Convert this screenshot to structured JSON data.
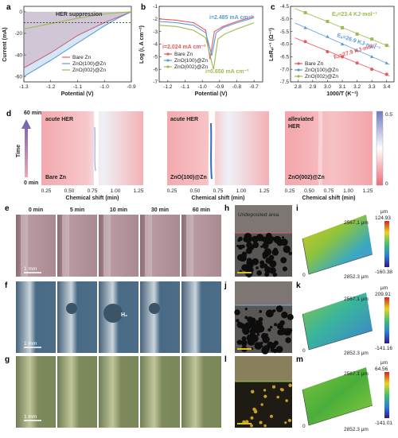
{
  "panels": {
    "a": {
      "letter": "a",
      "annotation": "HER suppression",
      "xlabel": "Potential (V)",
      "ylabel": "Current (mA)",
      "xticks": [
        "-1.3",
        "-1.2",
        "-1.1",
        "-1.0",
        "-0.9"
      ],
      "yticks": [
        "0",
        "-20",
        "-40",
        "-60"
      ],
      "legend": [
        "Bare Zn",
        "ZnO(100)@Zn",
        "ZnO(002)@Zn"
      ]
    },
    "b": {
      "letter": "b",
      "xlabel": "Potential (V)",
      "ylabel": "Log (i, A cm⁻²)",
      "xticks": [
        "-1.2",
        "-1.1",
        "-1.0",
        "-0.9",
        "-0.8",
        "-0.7"
      ],
      "yticks": [
        "-1",
        "-2",
        "-3",
        "-4",
        "-5",
        "-6",
        "-7"
      ],
      "legend": [
        "Bare Zn",
        "ZnO(100)@Zn",
        "ZnO(002)@Zn"
      ],
      "annotations": [
        "i=2.485 mA cm⁻²",
        "i=2.024 mA cm⁻²",
        "i=0.650 mA cm⁻²"
      ]
    },
    "c": {
      "letter": "c",
      "xlabel": "1000/T (K⁻¹)",
      "ylabel": "LnRₑₗ⁻¹ (Ω⁻¹)",
      "xticks": [
        "2.8",
        "2.9",
        "3.0",
        "3.1",
        "3.2",
        "3.3",
        "3.4"
      ],
      "yticks": [
        "-4.5",
        "-5.0",
        "-5.5",
        "-6.0",
        "-6.5",
        "-7.0",
        "-7.5"
      ],
      "legend": [
        "Bare Zn",
        "ZnO(100)@Zn",
        "ZnO(002)@Zn"
      ],
      "energies": [
        "Eₐ=23.4 KJ·mol⁻¹",
        "Eₐ=26.9 KJ·mol⁻¹",
        "Eₐ=27.9 KJ·mol⁻¹"
      ]
    },
    "d": {
      "letter": "d",
      "time_top": "60 min",
      "time_bottom": "0 min",
      "time_axis": "Time",
      "xlabel": "Chemical shift (min)",
      "xticks": [
        "0.25",
        "0.50",
        "0.75",
        "1.00",
        "1.25"
      ],
      "maps": [
        {
          "state": "acute HER",
          "sample": "Bare Zn"
        },
        {
          "state": "acute HER",
          "sample": "ZnO(100)@Zn"
        },
        {
          "state": "alleviated\nHER",
          "sample": "ZnO(002)@Zn"
        }
      ],
      "colorbar": [
        "0.5",
        "0"
      ]
    },
    "e": {
      "letter": "e",
      "times": [
        "0 min",
        "5 min",
        "10 min",
        "30 min",
        "60 min"
      ],
      "scale": "1 mm"
    },
    "f": {
      "letter": "f",
      "gas": "H₂",
      "scale": "1 mm"
    },
    "g": {
      "letter": "g",
      "scale": "1 mm"
    },
    "h": {
      "letter": "h",
      "label": "Undeposited area"
    },
    "i": {
      "letter": "i",
      "unit": "μm",
      "max": "124.93",
      "min": "-160.38",
      "dim_y": "2567.1 μm",
      "dim_x": "2852.3 μm",
      "origin": "0"
    },
    "j": {
      "letter": "j"
    },
    "k": {
      "letter": "k",
      "unit": "μm",
      "max": "209.91",
      "min": "-141.16",
      "dim_y": "2567.1 μm",
      "dim_x": "2852.3 μm",
      "origin": "0"
    },
    "l": {
      "letter": "l"
    },
    "m": {
      "letter": "m",
      "unit": "μm",
      "max": "64.56",
      "min": "-141.01",
      "dim_y": "2567.1 μm",
      "dim_x": "2852.3 μm",
      "origin": "0"
    }
  },
  "colors": {
    "bare": "#e8575f",
    "zno100": "#5b9bd5",
    "zno002": "#9bbb4b"
  },
  "chart_data": [
    {
      "type": "line",
      "xlabel": "Potential (V)",
      "ylabel": "Current (mA)",
      "xlim": [
        -1.3,
        -0.9
      ],
      "ylim": [
        -65,
        5
      ],
      "series": [
        {
          "name": "Bare Zn",
          "x": [
            -1.3,
            -1.2,
            -1.1,
            -1.05,
            -1.0,
            -0.95,
            -0.9
          ],
          "y": [
            -52,
            -38,
            -22,
            -16,
            -10,
            -5,
            0
          ]
        },
        {
          "name": "ZnO(100)@Zn",
          "x": [
            -1.3,
            -1.2,
            -1.1,
            -1.05,
            -1.0,
            -0.95,
            -0.9
          ],
          "y": [
            -60,
            -45,
            -29,
            -21,
            -13,
            -6,
            0
          ]
        },
        {
          "name": "ZnO(002)@Zn",
          "x": [
            -1.3,
            -1.2,
            -1.1,
            -1.05,
            -1.0,
            -0.95,
            -0.9
          ],
          "y": [
            -16,
            -11,
            -6,
            -4,
            -2,
            -1,
            0
          ]
        }
      ]
    },
    {
      "type": "line",
      "xlabel": "Potential (V)",
      "ylabel": "Log (i, A cm⁻²)",
      "xlim": [
        -1.25,
        -0.65
      ],
      "ylim": [
        -7,
        -1
      ],
      "series": [
        {
          "name": "Bare Zn",
          "x": [
            -1.25,
            -1.15,
            -1.05,
            -0.98,
            -0.955,
            -0.93,
            -0.88,
            -0.8,
            -0.7
          ],
          "y": [
            -2.0,
            -2.1,
            -2.3,
            -2.9,
            -5.2,
            -3.0,
            -2.6,
            -2.2,
            -1.8
          ]
        },
        {
          "name": "ZnO(100)@Zn",
          "x": [
            -1.25,
            -1.15,
            -1.05,
            -0.98,
            -0.945,
            -0.92,
            -0.88,
            -0.8,
            -0.7
          ],
          "y": [
            -2.2,
            -2.3,
            -2.5,
            -3.1,
            -4.9,
            -3.1,
            -2.7,
            -2.3,
            -1.9
          ]
        },
        {
          "name": "ZnO(002)@Zn",
          "x": [
            -1.25,
            -1.15,
            -1.05,
            -0.98,
            -0.935,
            -0.91,
            -0.87,
            -0.8,
            -0.7
          ],
          "y": [
            -2.5,
            -2.6,
            -2.9,
            -3.5,
            -6.0,
            -3.6,
            -3.2,
            -2.8,
            -2.3
          ]
        }
      ]
    },
    {
      "type": "scatter",
      "xlabel": "1000/T (K⁻¹)",
      "ylabel": "LnRₑₗ⁻¹ (Ω⁻¹)",
      "xlim": [
        2.75,
        3.45
      ],
      "ylim": [
        -7.5,
        -4.5
      ],
      "series": [
        {
          "name": "Bare Zn",
          "x": [
            2.85,
            3.0,
            3.1,
            3.2,
            3.3,
            3.4
          ],
          "y": [
            -5.9,
            -6.3,
            -6.5,
            -6.75,
            -7.0,
            -7.2
          ]
        },
        {
          "name": "ZnO(100)@Zn",
          "x": [
            2.85,
            3.0,
            3.1,
            3.2,
            3.3,
            3.4
          ],
          "y": [
            -5.35,
            -5.7,
            -6.0,
            -6.25,
            -6.5,
            -6.75
          ]
        },
        {
          "name": "ZnO(002)@Zn",
          "x": [
            2.85,
            3.0,
            3.1,
            3.2,
            3.3,
            3.4
          ],
          "y": [
            -4.75,
            -5.1,
            -5.35,
            -5.6,
            -5.8,
            -6.05
          ]
        }
      ]
    }
  ]
}
